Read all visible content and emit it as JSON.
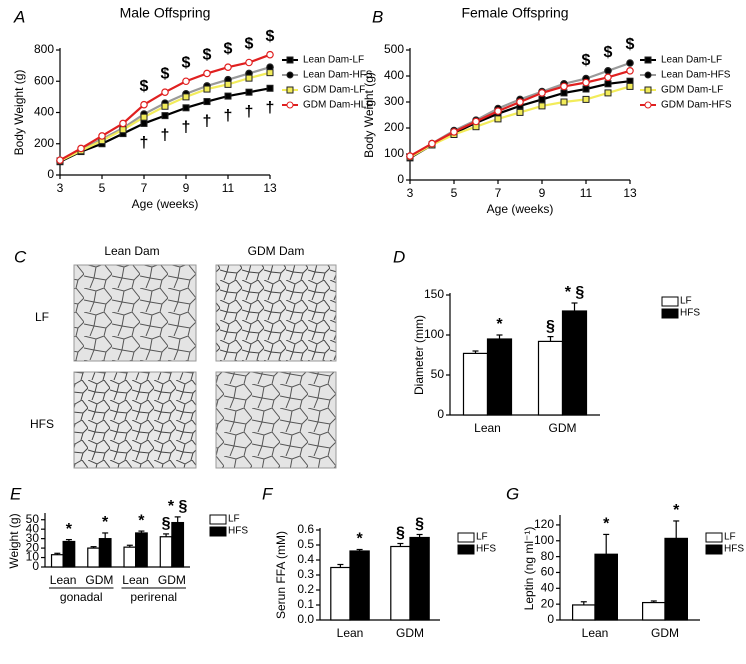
{
  "micrographs": {
    "panel": "C",
    "columns": [
      "Lean Dam",
      "GDM Dam"
    ],
    "rows": [
      "LF",
      "HFS"
    ]
  },
  "chart_data": [
    {
      "type": "line",
      "panel": "A",
      "title": "Male Offspring",
      "x_label": "Age (weeks)",
      "y_label": "Body Weight (g)",
      "x": [
        3,
        4,
        5,
        6,
        7,
        8,
        9,
        10,
        11,
        12,
        13
      ],
      "xlim": [
        3,
        13
      ],
      "xticks": [
        3,
        5,
        7,
        9,
        11,
        13
      ],
      "ylim": [
        0,
        800
      ],
      "yticks": [
        0,
        200,
        400,
        600,
        800
      ],
      "series": [
        {
          "name": "Lean Dam-LF",
          "color": "#000000",
          "marker": "square",
          "marker_color": "#000000",
          "values": [
            85,
            150,
            200,
            265,
            330,
            380,
            430,
            470,
            505,
            530,
            555
          ]
        },
        {
          "name": "Lean Dam-HFS",
          "color": "#9a9a9a",
          "marker": "circle",
          "marker_color": "#000000",
          "values": [
            90,
            160,
            230,
            300,
            390,
            460,
            520,
            570,
            610,
            650,
            690
          ]
        },
        {
          "name": "GDM Dam-LF",
          "color": "#f2ec5a",
          "marker": "square",
          "marker_color": "#f2ec5a",
          "values": [
            90,
            155,
            220,
            290,
            370,
            440,
            500,
            550,
            580,
            620,
            655
          ]
        },
        {
          "name": "GDM Dam-HLF",
          "color": "#e02020",
          "marker": "circle",
          "marker_color": "#ffffff",
          "values": [
            95,
            170,
            250,
            330,
            450,
            530,
            600,
            650,
            690,
            720,
            770
          ]
        }
      ],
      "annotations": [
        {
          "text": "$",
          "position": "above",
          "x": [
            7,
            8,
            9,
            10,
            11,
            12,
            13
          ]
        },
        {
          "text": "†",
          "position": "below",
          "x": [
            7,
            8,
            9,
            10,
            11,
            12,
            13
          ]
        }
      ]
    },
    {
      "type": "line",
      "panel": "B",
      "title": "Female Offspring",
      "x_label": "Age (weeks)",
      "y_label": "Body Weight (g)",
      "x": [
        3,
        4,
        5,
        6,
        7,
        8,
        9,
        10,
        11,
        12,
        13
      ],
      "xlim": [
        3,
        13
      ],
      "xticks": [
        3,
        5,
        7,
        9,
        11,
        13
      ],
      "ylim": [
        0,
        500
      ],
      "yticks": [
        0,
        100,
        200,
        300,
        400,
        500
      ],
      "series": [
        {
          "name": "Lean Dam-LF",
          "color": "#000000",
          "marker": "square",
          "marker_color": "#000000",
          "values": [
            85,
            135,
            180,
            220,
            255,
            285,
            310,
            335,
            350,
            370,
            380
          ]
        },
        {
          "name": "Lean Dam-HFS",
          "color": "#9a9a9a",
          "marker": "circle",
          "marker_color": "#000000",
          "values": [
            90,
            140,
            190,
            230,
            275,
            310,
            340,
            370,
            390,
            420,
            450
          ]
        },
        {
          "name": "GDM Dam-LF",
          "color": "#f2ec5a",
          "marker": "square",
          "marker_color": "#f2ec5a",
          "values": [
            88,
            135,
            175,
            205,
            235,
            260,
            285,
            300,
            310,
            335,
            360
          ]
        },
        {
          "name": "GDM Dam-HFS",
          "color": "#e02020",
          "marker": "circle",
          "marker_color": "#ffffff",
          "values": [
            92,
            140,
            185,
            225,
            265,
            300,
            335,
            360,
            375,
            395,
            420
          ]
        }
      ],
      "annotations": [
        {
          "text": "$",
          "position": "above",
          "x": [
            11,
            12,
            13
          ]
        }
      ]
    },
    {
      "type": "bar",
      "panel": "D",
      "y_label": "Diameter (mm)",
      "categories": [
        "Lean",
        "GDM"
      ],
      "ylim": [
        0,
        150
      ],
      "yticks": [
        0,
        50,
        100,
        150
      ],
      "series": [
        {
          "name": "LF",
          "color": "#ffffff",
          "values": [
            77,
            92
          ],
          "errors": [
            3,
            6
          ],
          "annotations": [
            null,
            "§"
          ]
        },
        {
          "name": "HFS",
          "color": "#000000",
          "values": [
            95,
            130
          ],
          "errors": [
            5,
            10
          ],
          "annotations": [
            "*",
            "* §"
          ]
        }
      ]
    },
    {
      "type": "bar",
      "panel": "E",
      "y_label": "Weight (g)",
      "categories": [
        "Lean",
        "GDM",
        "Lean",
        "GDM"
      ],
      "groups": [
        "gonadal",
        "perirenal"
      ],
      "ylim": [
        0,
        55
      ],
      "yticks": [
        0,
        10,
        20,
        30,
        40,
        50
      ],
      "series": [
        {
          "name": "LF",
          "color": "#ffffff",
          "values": [
            13,
            20,
            21,
            32
          ],
          "errors": [
            1.5,
            1.5,
            2,
            3
          ],
          "annotations": [
            null,
            null,
            null,
            "§"
          ]
        },
        {
          "name": "HFS",
          "color": "#000000",
          "values": [
            27,
            30,
            36,
            47
          ],
          "errors": [
            2,
            6,
            2,
            6
          ],
          "annotations": [
            "*",
            "*",
            "*",
            "* §"
          ]
        }
      ]
    },
    {
      "type": "bar",
      "panel": "F",
      "y_label": "Serun FFA (mM)",
      "categories": [
        "Lean",
        "GDM"
      ],
      "ylim": [
        0,
        0.6
      ],
      "yticks": [
        {
          "value": 0,
          "label": "0.0"
        },
        0.1,
        0.2,
        0.3,
        0.4,
        0.5,
        0.6
      ],
      "series": [
        {
          "name": "LF",
          "color": "#ffffff",
          "values": [
            0.35,
            0.49
          ],
          "errors": [
            0.02,
            0.02
          ],
          "annotations": [
            null,
            "§"
          ]
        },
        {
          "name": "HFS",
          "color": "#000000",
          "values": [
            0.46,
            0.55
          ],
          "errors": [
            0.01,
            0.02
          ],
          "annotations": [
            "*",
            "§"
          ]
        }
      ]
    },
    {
      "type": "bar",
      "panel": "G",
      "y_label": "Leptin (ng ml⁻¹)",
      "categories": [
        "Lean",
        "GDM"
      ],
      "ylim": [
        0,
        130
      ],
      "yticks": [
        0,
        20,
        40,
        60,
        80,
        100,
        120
      ],
      "series": [
        {
          "name": "LF",
          "color": "#ffffff",
          "values": [
            19,
            22
          ],
          "errors": [
            4,
            2
          ],
          "annotations": [
            null,
            null
          ]
        },
        {
          "name": "HFS",
          "color": "#000000",
          "values": [
            83,
            103
          ],
          "errors": [
            25,
            22
          ],
          "annotations": [
            "*",
            "*"
          ]
        }
      ]
    }
  ]
}
